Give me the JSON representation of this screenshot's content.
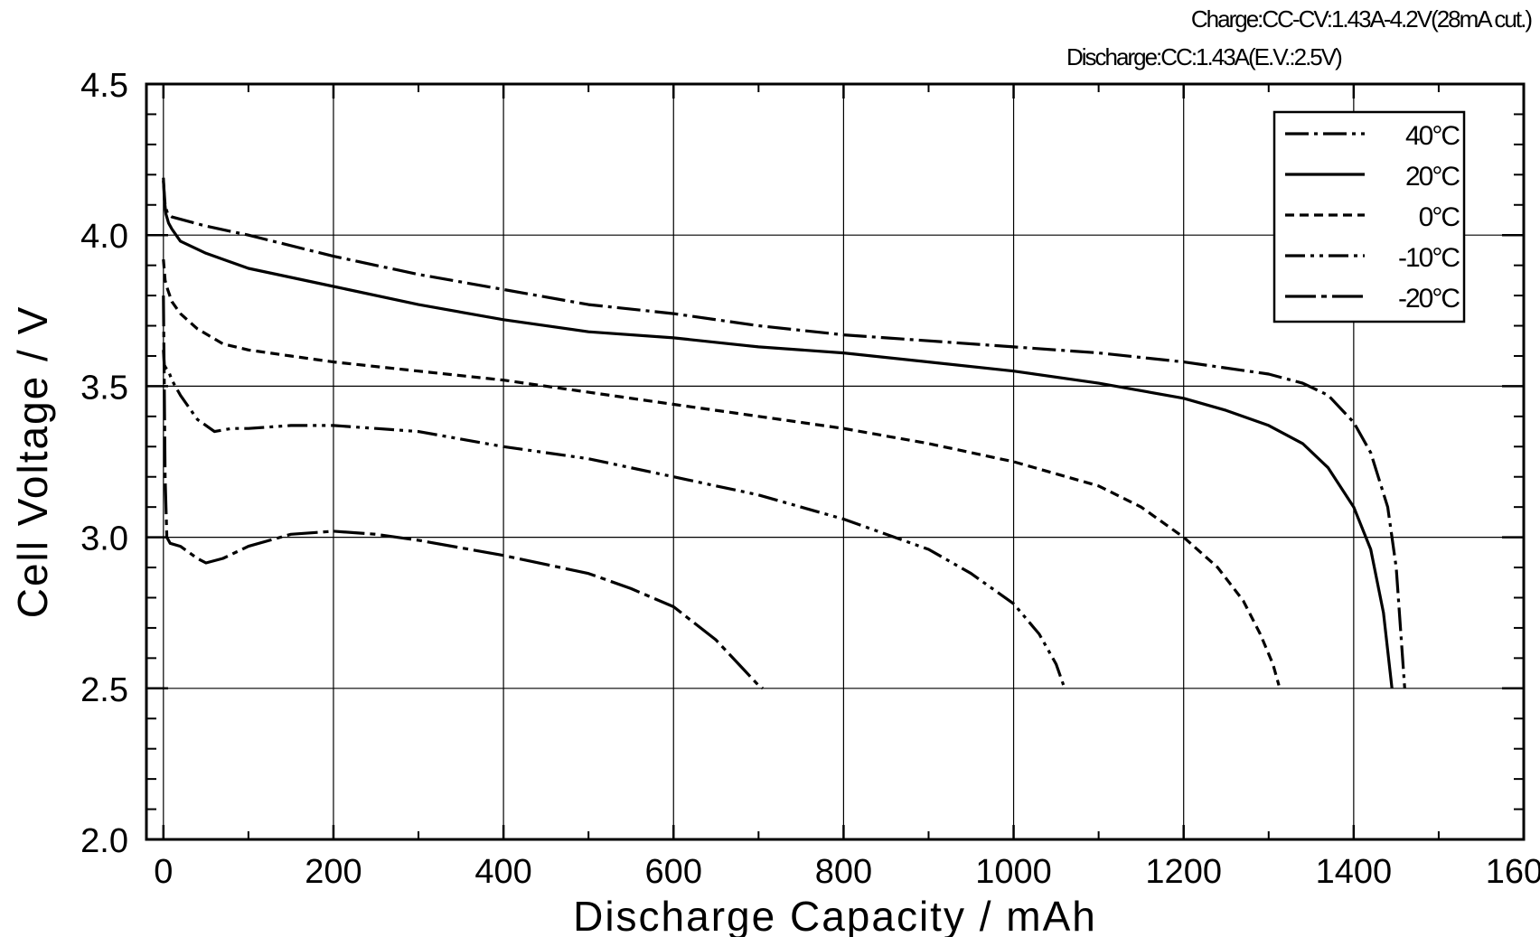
{
  "annotations": {
    "charge": "Charge:CC-CV:1.43A-4.2V(28mA cut.)",
    "discharge": "Discharge:CC:1.43A(E.V.:2.5V)"
  },
  "chart_data": {
    "type": "line",
    "xlabel": "Discharge  Capacity  /  mAh",
    "ylabel": "Cell  Voltage  /  V",
    "xlim": [
      -20,
      1600
    ],
    "ylim": [
      2.0,
      4.5
    ],
    "xticks": [
      0,
      200,
      400,
      600,
      800,
      1000,
      1200,
      1400,
      1600
    ],
    "yticks": [
      2.0,
      2.5,
      3.0,
      3.5,
      4.0,
      4.5
    ],
    "xtick_labels": [
      "0",
      "200",
      "400",
      "600",
      "800",
      "1000",
      "1200",
      "1400",
      "1600"
    ],
    "ytick_labels": [
      "2.0",
      "2.5",
      "3.0",
      "3.5",
      "4.0",
      "4.5"
    ],
    "grid": true,
    "legend_position": "top-right",
    "series": [
      {
        "name": "40°C",
        "dash": "dash-dot",
        "x": [
          0,
          2,
          5,
          10,
          50,
          100,
          200,
          300,
          400,
          500,
          600,
          700,
          800,
          900,
          1000,
          1100,
          1200,
          1300,
          1340,
          1370,
          1400,
          1420,
          1440,
          1450,
          1460
        ],
        "y": [
          4.18,
          4.1,
          4.07,
          4.06,
          4.03,
          4.0,
          3.93,
          3.87,
          3.82,
          3.77,
          3.74,
          3.7,
          3.67,
          3.65,
          3.63,
          3.61,
          3.58,
          3.54,
          3.51,
          3.47,
          3.38,
          3.28,
          3.1,
          2.9,
          2.5
        ]
      },
      {
        "name": "20°C",
        "dash": "solid",
        "x": [
          0,
          1,
          3,
          6,
          10,
          20,
          50,
          100,
          200,
          300,
          400,
          500,
          600,
          700,
          800,
          900,
          1000,
          1100,
          1200,
          1250,
          1300,
          1340,
          1370,
          1400,
          1420,
          1435,
          1445
        ],
        "y": [
          4.19,
          4.12,
          4.07,
          4.04,
          4.02,
          3.98,
          3.94,
          3.89,
          3.83,
          3.77,
          3.72,
          3.68,
          3.66,
          3.63,
          3.61,
          3.58,
          3.55,
          3.51,
          3.46,
          3.42,
          3.37,
          3.31,
          3.23,
          3.1,
          2.96,
          2.75,
          2.5
        ]
      },
      {
        "name": "0°C",
        "dash": "dashed",
        "x": [
          0,
          2,
          5,
          10,
          20,
          40,
          70,
          100,
          150,
          200,
          300,
          400,
          500,
          600,
          700,
          800,
          900,
          1000,
          1100,
          1150,
          1200,
          1240,
          1270,
          1290,
          1305,
          1312
        ],
        "y": [
          3.92,
          3.85,
          3.82,
          3.78,
          3.74,
          3.69,
          3.64,
          3.62,
          3.6,
          3.58,
          3.55,
          3.52,
          3.48,
          3.44,
          3.4,
          3.36,
          3.31,
          3.25,
          3.17,
          3.1,
          3.0,
          2.9,
          2.79,
          2.68,
          2.58,
          2.51
        ]
      },
      {
        "name": "-10°C",
        "dash": "dash-dot-dot",
        "x": [
          0,
          1,
          3,
          6,
          10,
          20,
          40,
          60,
          80,
          100,
          150,
          200,
          250,
          300,
          400,
          500,
          600,
          700,
          800,
          900,
          950,
          1000,
          1030,
          1050,
          1060
        ],
        "y": [
          3.62,
          3.57,
          3.56,
          3.55,
          3.52,
          3.47,
          3.39,
          3.35,
          3.36,
          3.36,
          3.37,
          3.37,
          3.36,
          3.35,
          3.3,
          3.26,
          3.2,
          3.14,
          3.06,
          2.96,
          2.88,
          2.78,
          2.68,
          2.58,
          2.5
        ]
      },
      {
        "name": "-20°C",
        "dash": "long-dash-dot",
        "x": [
          0,
          1,
          2,
          4,
          8,
          20,
          40,
          50,
          70,
          100,
          150,
          200,
          250,
          300,
          400,
          500,
          550,
          600,
          650,
          680,
          700,
          705
        ],
        "y": [
          3.8,
          3.5,
          3.2,
          3.0,
          2.98,
          2.97,
          2.93,
          2.915,
          2.93,
          2.97,
          3.01,
          3.02,
          3.01,
          2.99,
          2.94,
          2.88,
          2.83,
          2.77,
          2.66,
          2.57,
          2.51,
          2.5
        ]
      }
    ]
  }
}
